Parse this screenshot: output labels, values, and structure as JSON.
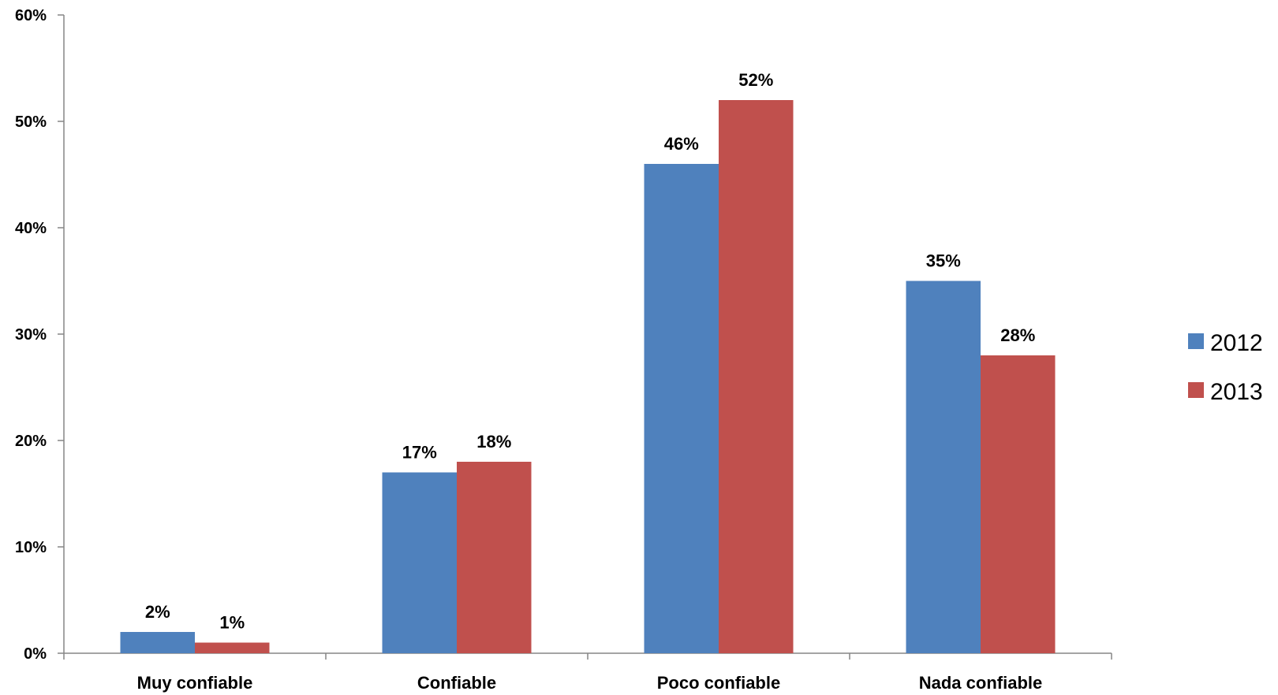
{
  "chart_data": {
    "type": "bar",
    "categories": [
      "Muy confiable",
      "Confiable",
      "Poco confiable",
      "Nada confiable"
    ],
    "series": [
      {
        "name": "2012",
        "values": [
          2,
          17,
          46,
          35
        ],
        "labels": [
          "2%",
          "17%",
          "46%",
          "35%"
        ],
        "color": "#4F81BD"
      },
      {
        "name": "2013",
        "values": [
          1,
          18,
          52,
          28
        ],
        "labels": [
          "1%",
          "18%",
          "52%",
          "28%"
        ],
        "color": "#C0504D"
      }
    ],
    "y_ticks": [
      "0%",
      "10%",
      "20%",
      "30%",
      "40%",
      "50%",
      "60%"
    ],
    "ylim": [
      0,
      60
    ],
    "title": "",
    "xlabel": "",
    "ylabel": "",
    "grid": false,
    "legend": "right"
  }
}
